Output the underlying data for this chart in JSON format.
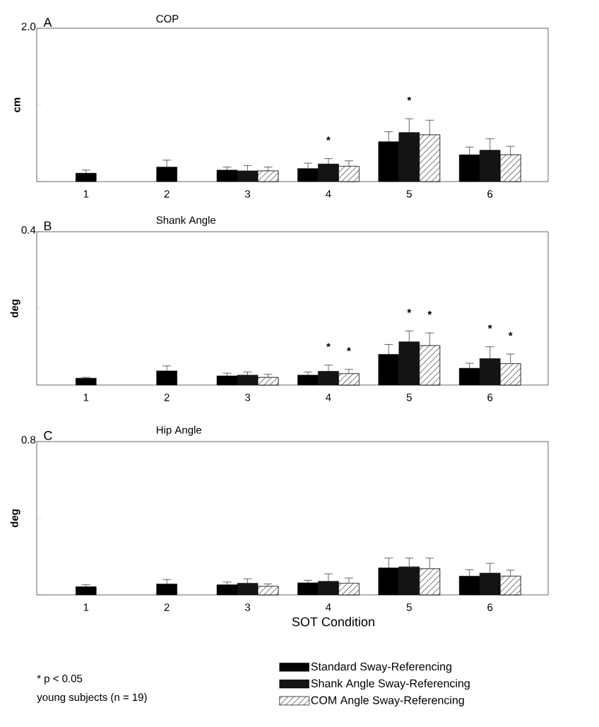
{
  "chart_data": [
    {
      "type": "bar",
      "title": "COP",
      "ylabel": "cm",
      "categories": [
        "1",
        "2",
        "3",
        "4",
        "5",
        "6"
      ],
      "ylim": [
        0,
        2.0
      ],
      "yticks": [
        {
          "value": 0,
          "label": null
        },
        {
          "value": 1.0,
          "label": null
        },
        {
          "value": 2.0,
          "label": "2.0"
        }
      ],
      "series": [
        {
          "color": "#000000",
          "values": [
            0.11,
            0.19,
            0.15,
            0.17,
            0.52,
            0.35
          ],
          "errors": [
            [
              0.11,
              0.15
            ],
            [
              0.19,
              0.28
            ],
            [
              0.15,
              0.19
            ],
            [
              0.17,
              0.24
            ],
            [
              0.52,
              0.65
            ],
            [
              0.35,
              0.45
            ]
          ]
        },
        {
          "color": "#141414",
          "values": [
            null,
            null,
            0.14,
            0.23,
            0.64,
            0.41
          ],
          "errors": [
            null,
            null,
            [
              0.14,
              0.21
            ],
            [
              0.23,
              0.3
            ],
            [
              0.64,
              0.82
            ],
            [
              0.41,
              0.56
            ]
          ]
        },
        {
          "color": "#ffffff",
          "values": [
            null,
            null,
            0.14,
            0.2,
            0.61,
            0.35
          ],
          "errors": [
            null,
            null,
            [
              0.14,
              0.19
            ],
            [
              0.2,
              0.27
            ],
            [
              0.61,
              0.8
            ],
            [
              0.35,
              0.46
            ]
          ]
        }
      ],
      "annotations": [
        "A",
        "*",
        "*"
      ]
    },
    {
      "type": "bar",
      "title": "Shank Angle",
      "ylabel": "deg",
      "categories": [
        "1",
        "2",
        "3",
        "4",
        "5",
        "6"
      ],
      "ylim": [
        0,
        0.4
      ],
      "yticks": [
        {
          "value": 0,
          "label": null
        },
        {
          "value": 0.2,
          "label": null
        },
        {
          "value": 0.4,
          "label": "0.4"
        }
      ],
      "series": [
        {
          "color": "#000000",
          "values": [
            0.018,
            0.037,
            0.024,
            0.026,
            0.08,
            0.044
          ],
          "errors": [
            [
              0.018,
              0.02
            ],
            [
              0.037,
              0.05
            ],
            [
              0.024,
              0.031
            ],
            [
              0.026,
              0.034
            ],
            [
              0.08,
              0.106
            ],
            [
              0.044,
              0.057
            ]
          ]
        },
        {
          "color": "#141414",
          "values": [
            null,
            null,
            0.026,
            0.036,
            0.113,
            0.069
          ],
          "errors": [
            null,
            null,
            [
              0.026,
              0.034
            ],
            [
              0.036,
              0.052
            ],
            [
              0.113,
              0.141
            ],
            [
              0.069,
              0.1
            ]
          ]
        },
        {
          "color": "#ffffff",
          "values": [
            null,
            null,
            0.02,
            0.03,
            0.103,
            0.056
          ],
          "errors": [
            null,
            null,
            [
              0.02,
              0.028
            ],
            [
              0.03,
              0.041
            ],
            [
              0.103,
              0.136
            ],
            [
              0.056,
              0.081
            ]
          ]
        }
      ],
      "annotations": [
        "B",
        "*",
        "*",
        "*",
        "*",
        "*",
        "*"
      ]
    },
    {
      "type": "bar",
      "title": "Hip Angle",
      "ylabel": "deg",
      "xlabel": "SOT Condition",
      "categories": [
        "1",
        "2",
        "3",
        "4",
        "5",
        "6"
      ],
      "ylim": [
        0,
        0.8
      ],
      "yticks": [
        {
          "value": 0,
          "label": null
        },
        {
          "value": 0.4,
          "label": null
        },
        {
          "value": 0.8,
          "label": "0.8"
        }
      ],
      "legend": "bottom right",
      "series": [
        {
          "name": "Standard Sway-Referencing",
          "color": "#000000",
          "values": [
            0.043,
            0.057,
            0.053,
            0.063,
            0.141,
            0.098
          ],
          "errors": [
            [
              0.043,
              0.053
            ],
            [
              0.057,
              0.08
            ],
            [
              0.053,
              0.067
            ],
            [
              0.063,
              0.076
            ],
            [
              0.141,
              0.192
            ],
            [
              0.098,
              0.131
            ]
          ]
        },
        {
          "name": "Shank Angle Sway-Referencing",
          "color": "#141414",
          "values": [
            null,
            null,
            0.061,
            0.071,
            0.147,
            0.114
          ],
          "errors": [
            null,
            null,
            [
              0.061,
              0.084
            ],
            [
              0.071,
              0.11
            ],
            [
              0.147,
              0.192
            ],
            [
              0.114,
              0.165
            ]
          ]
        },
        {
          "name": "COM Angle Sway-Referencing",
          "color": "#ffffff",
          "values": [
            null,
            null,
            0.045,
            0.061,
            0.137,
            0.098
          ],
          "errors": [
            null,
            null,
            [
              0.045,
              0.057
            ],
            [
              0.061,
              0.088
            ],
            [
              0.137,
              0.192
            ],
            [
              0.098,
              0.129
            ]
          ]
        }
      ],
      "annotations": [
        "C",
        "* p < 0.05",
        "young subjects (n = 19)"
      ]
    }
  ]
}
